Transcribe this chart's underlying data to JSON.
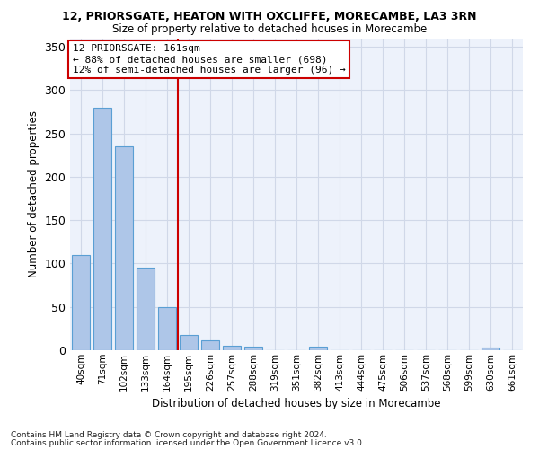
{
  "title": "12, PRIORSGATE, HEATON WITH OXCLIFFE, MORECAMBE, LA3 3RN",
  "subtitle": "Size of property relative to detached houses in Morecambe",
  "xlabel": "Distribution of detached houses by size in Morecambe",
  "ylabel": "Number of detached properties",
  "categories": [
    "40sqm",
    "71sqm",
    "102sqm",
    "133sqm",
    "164sqm",
    "195sqm",
    "226sqm",
    "257sqm",
    "288sqm",
    "319sqm",
    "351sqm",
    "382sqm",
    "413sqm",
    "444sqm",
    "475sqm",
    "506sqm",
    "537sqm",
    "568sqm",
    "599sqm",
    "630sqm",
    "661sqm"
  ],
  "values": [
    110,
    280,
    235,
    95,
    50,
    18,
    11,
    5,
    4,
    0,
    0,
    4,
    0,
    0,
    0,
    0,
    0,
    0,
    0,
    3,
    0
  ],
  "bar_color": "#aec6e8",
  "bar_edge_color": "#5a9fd4",
  "annotation_line1": "12 PRIORSGATE: 161sqm",
  "annotation_line2": "← 88% of detached houses are smaller (698)",
  "annotation_line3": "12% of semi-detached houses are larger (96) →",
  "annotation_box_color": "#ffffff",
  "annotation_box_edge_color": "#cc0000",
  "vline_x": 4.5,
  "vline_color": "#cc0000",
  "ylim": [
    0,
    360
  ],
  "yticks": [
    0,
    50,
    100,
    150,
    200,
    250,
    300,
    350
  ],
  "grid_color": "#d0d8e8",
  "bg_color": "#edf2fb",
  "footer1": "Contains HM Land Registry data © Crown copyright and database right 2024.",
  "footer2": "Contains public sector information licensed under the Open Government Licence v3.0."
}
